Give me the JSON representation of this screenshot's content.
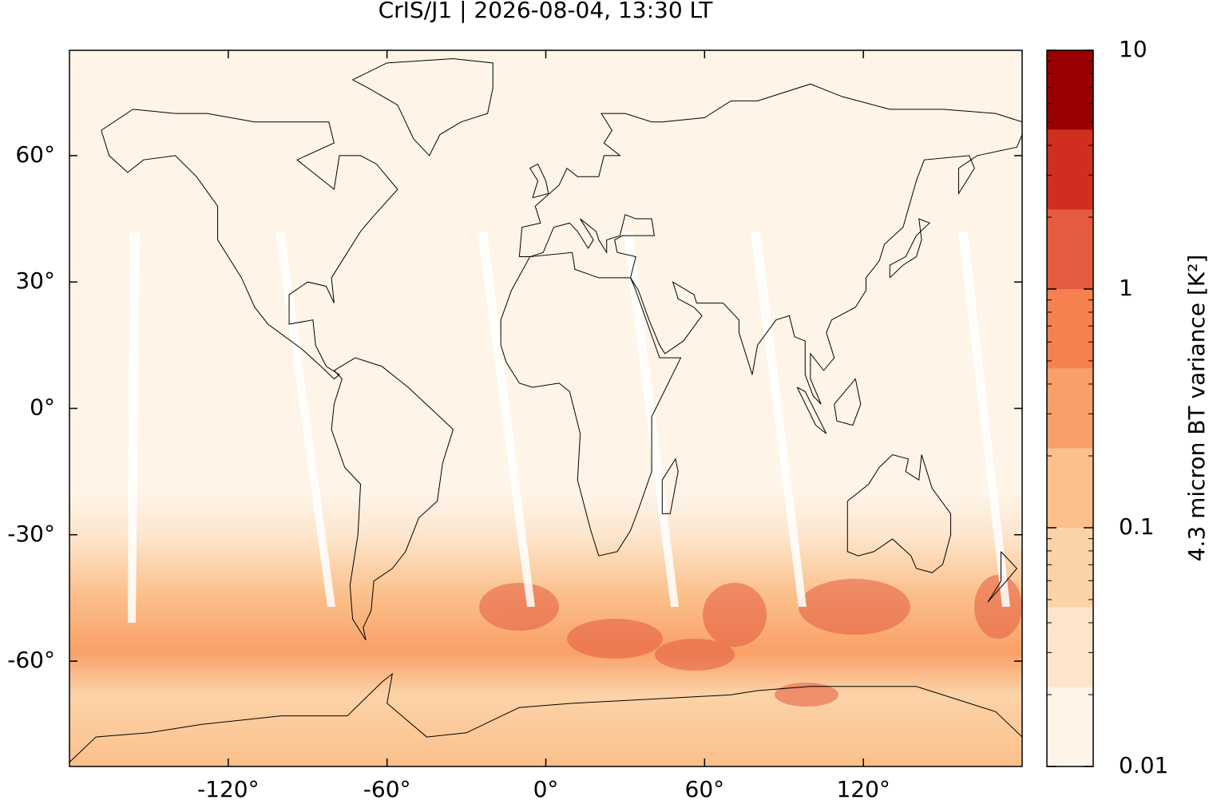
{
  "chart_data": {
    "type": "map",
    "title": "CrIS/J1 | 2026-08-04, 13:30 LT",
    "xlim": [
      -180,
      180
    ],
    "ylim": [
      -85,
      85
    ],
    "xticks": [
      {
        "value": -120,
        "label": "-120°"
      },
      {
        "value": -60,
        "label": "-60°"
      },
      {
        "value": 0,
        "label": "0°"
      },
      {
        "value": 60,
        "label": "60°"
      },
      {
        "value": 120,
        "label": "120°"
      }
    ],
    "yticks": [
      {
        "value": -60,
        "label": "-60°"
      },
      {
        "value": -30,
        "label": "-30°"
      },
      {
        "value": 0,
        "label": "0°"
      },
      {
        "value": 30,
        "label": "30°"
      },
      {
        "value": 60,
        "label": "60°"
      }
    ],
    "colorbar": {
      "label": "4.3 micron BT variance [K²]",
      "log": true,
      "lim": [
        0.01,
        10
      ],
      "levels": [
        0.01,
        0.0215,
        0.0464,
        0.1,
        0.215,
        0.464,
        1,
        2.15,
        4.64,
        10
      ],
      "colors": [
        "#fef4e8",
        "#fde5cb",
        "#fcd3a8",
        "#fbc08b",
        "#f9a068",
        "#f4814f",
        "#e45b3f",
        "#d02e1e",
        "#990000"
      ],
      "ticks": [
        0.01,
        0.1,
        1,
        10
      ],
      "minor_ticks": [
        0.02,
        0.03,
        0.04,
        0.05,
        0.06,
        0.07,
        0.08,
        0.09,
        0.2,
        0.3,
        0.4,
        0.5,
        0.6,
        0.7,
        0.8,
        0.9,
        2,
        3,
        4,
        5,
        6,
        7,
        8,
        9
      ]
    }
  }
}
